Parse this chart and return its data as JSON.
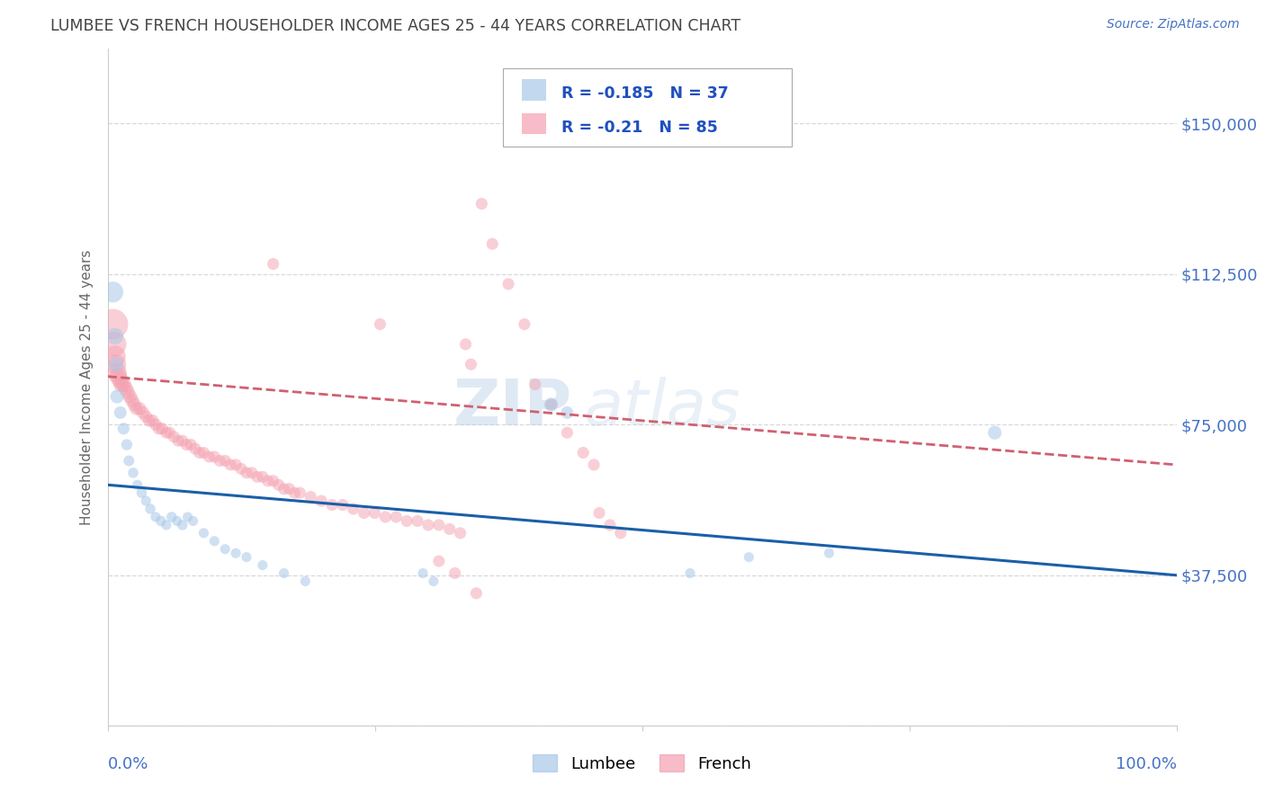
{
  "title": "LUMBEE VS FRENCH HOUSEHOLDER INCOME AGES 25 - 44 YEARS CORRELATION CHART",
  "source": "Source: ZipAtlas.com",
  "ylabel": "Householder Income Ages 25 - 44 years",
  "yticks": [
    0,
    37500,
    75000,
    112500,
    150000
  ],
  "ytick_labels": [
    "",
    "$37,500",
    "$75,000",
    "$112,500",
    "$150,000"
  ],
  "xmin": 0.0,
  "xmax": 1.0,
  "ymin": 0,
  "ymax": 168750,
  "lumbee_R": -0.185,
  "lumbee_N": 37,
  "french_R": -0.21,
  "french_N": 85,
  "lumbee_color": "#a8c8e8",
  "french_color": "#f4a0b0",
  "lumbee_line_color": "#1a5fa8",
  "french_line_color": "#d06070",
  "background_color": "#ffffff",
  "grid_color": "#d8d8d8",
  "title_color": "#444444",
  "ylabel_color": "#666666",
  "axis_label_color": "#4472c4",
  "legend_R_color": "#2050c0",
  "lumbee_points": [
    [
      0.005,
      108000,
      280
    ],
    [
      0.007,
      97000,
      180
    ],
    [
      0.008,
      90000,
      140
    ],
    [
      0.009,
      82000,
      120
    ],
    [
      0.012,
      78000,
      100
    ],
    [
      0.015,
      74000,
      90
    ],
    [
      0.018,
      70000,
      80
    ],
    [
      0.02,
      66000,
      75
    ],
    [
      0.024,
      63000,
      70
    ],
    [
      0.028,
      60000,
      65
    ],
    [
      0.032,
      58000,
      70
    ],
    [
      0.036,
      56000,
      65
    ],
    [
      0.04,
      54000,
      70
    ],
    [
      0.045,
      52000,
      65
    ],
    [
      0.05,
      51000,
      70
    ],
    [
      0.055,
      50000,
      65
    ],
    [
      0.06,
      52000,
      70
    ],
    [
      0.065,
      51000,
      65
    ],
    [
      0.07,
      50000,
      70
    ],
    [
      0.075,
      52000,
      65
    ],
    [
      0.08,
      51000,
      65
    ],
    [
      0.09,
      48000,
      65
    ],
    [
      0.1,
      46000,
      65
    ],
    [
      0.11,
      44000,
      65
    ],
    [
      0.12,
      43000,
      65
    ],
    [
      0.13,
      42000,
      65
    ],
    [
      0.145,
      40000,
      65
    ],
    [
      0.165,
      38000,
      65
    ],
    [
      0.185,
      36000,
      65
    ],
    [
      0.295,
      38000,
      65
    ],
    [
      0.305,
      36000,
      65
    ],
    [
      0.415,
      80000,
      120
    ],
    [
      0.43,
      78000,
      100
    ],
    [
      0.545,
      38000,
      65
    ],
    [
      0.6,
      42000,
      65
    ],
    [
      0.675,
      43000,
      65
    ],
    [
      0.83,
      73000,
      120
    ]
  ],
  "french_points": [
    [
      0.005,
      100000,
      600
    ],
    [
      0.006,
      95000,
      400
    ],
    [
      0.007,
      92000,
      300
    ],
    [
      0.008,
      90000,
      260
    ],
    [
      0.009,
      88000,
      230
    ],
    [
      0.01,
      87000,
      200
    ],
    [
      0.012,
      86000,
      180
    ],
    [
      0.013,
      85000,
      160
    ],
    [
      0.015,
      85000,
      150
    ],
    [
      0.017,
      84000,
      140
    ],
    [
      0.019,
      83000,
      130
    ],
    [
      0.021,
      82000,
      125
    ],
    [
      0.023,
      81000,
      120
    ],
    [
      0.025,
      80000,
      115
    ],
    [
      0.027,
      79000,
      110
    ],
    [
      0.03,
      79000,
      110
    ],
    [
      0.033,
      78000,
      105
    ],
    [
      0.036,
      77000,
      100
    ],
    [
      0.039,
      76000,
      100
    ],
    [
      0.042,
      76000,
      100
    ],
    [
      0.045,
      75000,
      95
    ],
    [
      0.048,
      74000,
      95
    ],
    [
      0.051,
      74000,
      95
    ],
    [
      0.055,
      73000,
      90
    ],
    [
      0.058,
      73000,
      90
    ],
    [
      0.062,
      72000,
      90
    ],
    [
      0.066,
      71000,
      90
    ],
    [
      0.07,
      71000,
      90
    ],
    [
      0.074,
      70000,
      90
    ],
    [
      0.078,
      70000,
      90
    ],
    [
      0.082,
      69000,
      90
    ],
    [
      0.086,
      68000,
      90
    ],
    [
      0.09,
      68000,
      90
    ],
    [
      0.095,
      67000,
      90
    ],
    [
      0.1,
      67000,
      90
    ],
    [
      0.105,
      66000,
      90
    ],
    [
      0.11,
      66000,
      90
    ],
    [
      0.115,
      65000,
      90
    ],
    [
      0.12,
      65000,
      90
    ],
    [
      0.125,
      64000,
      90
    ],
    [
      0.13,
      63000,
      90
    ],
    [
      0.135,
      63000,
      90
    ],
    [
      0.14,
      62000,
      90
    ],
    [
      0.145,
      62000,
      90
    ],
    [
      0.15,
      61000,
      90
    ],
    [
      0.155,
      61000,
      90
    ],
    [
      0.16,
      60000,
      90
    ],
    [
      0.165,
      59000,
      90
    ],
    [
      0.17,
      59000,
      90
    ],
    [
      0.175,
      58000,
      90
    ],
    [
      0.18,
      58000,
      90
    ],
    [
      0.19,
      57000,
      90
    ],
    [
      0.2,
      56000,
      90
    ],
    [
      0.21,
      55000,
      90
    ],
    [
      0.22,
      55000,
      90
    ],
    [
      0.23,
      54000,
      90
    ],
    [
      0.24,
      53000,
      90
    ],
    [
      0.25,
      53000,
      90
    ],
    [
      0.26,
      52000,
      90
    ],
    [
      0.27,
      52000,
      90
    ],
    [
      0.28,
      51000,
      90
    ],
    [
      0.29,
      51000,
      90
    ],
    [
      0.3,
      50000,
      90
    ],
    [
      0.31,
      50000,
      90
    ],
    [
      0.32,
      49000,
      90
    ],
    [
      0.33,
      48000,
      90
    ],
    [
      0.155,
      115000,
      90
    ],
    [
      0.255,
      100000,
      90
    ],
    [
      0.335,
      95000,
      90
    ],
    [
      0.34,
      90000,
      90
    ],
    [
      0.35,
      130000,
      90
    ],
    [
      0.36,
      120000,
      90
    ],
    [
      0.375,
      110000,
      90
    ],
    [
      0.39,
      100000,
      90
    ],
    [
      0.4,
      85000,
      90
    ],
    [
      0.415,
      80000,
      90
    ],
    [
      0.43,
      73000,
      90
    ],
    [
      0.445,
      68000,
      90
    ],
    [
      0.455,
      65000,
      90
    ],
    [
      0.46,
      53000,
      90
    ],
    [
      0.47,
      50000,
      90
    ],
    [
      0.48,
      48000,
      90
    ],
    [
      0.31,
      41000,
      90
    ],
    [
      0.325,
      38000,
      90
    ],
    [
      0.345,
      33000,
      90
    ]
  ]
}
